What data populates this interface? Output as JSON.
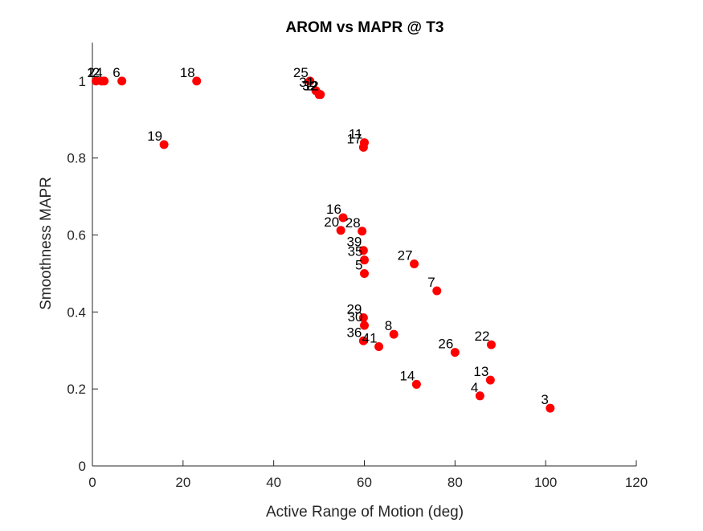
{
  "chart_data": {
    "type": "scatter",
    "title": "AROM vs MAPR @ T3",
    "xlabel": "Active Range of Motion (deg)",
    "ylabel": "Smoothness MAPR",
    "xlim": [
      0,
      120
    ],
    "ylim": [
      0,
      1.1
    ],
    "xticks": [
      "0",
      "20",
      "40",
      "60",
      "80",
      "100",
      "120"
    ],
    "yticks": [
      "0",
      "0.2",
      "0.4",
      "0.6",
      "0.8",
      "1"
    ],
    "grid": false,
    "marker_color": "#ff0000",
    "points": [
      {
        "label": "1",
        "x": 0.8,
        "y": 1.0
      },
      {
        "label": "2",
        "x": 2.0,
        "y": 1.0
      },
      {
        "label": "24",
        "x": 2.6,
        "y": 1.0
      },
      {
        "label": "6",
        "x": 6.5,
        "y": 1.0
      },
      {
        "label": "18",
        "x": 23.0,
        "y": 1.0
      },
      {
        "label": "19",
        "x": 15.8,
        "y": 0.835
      },
      {
        "label": "25",
        "x": 48.0,
        "y": 1.0
      },
      {
        "label": "31",
        "x": 49.3,
        "y": 0.975
      },
      {
        "label": "32",
        "x": 50.0,
        "y": 0.965
      },
      {
        "label": "12",
        "x": 50.3,
        "y": 0.965
      },
      {
        "label": "11",
        "x": 60.0,
        "y": 0.84
      },
      {
        "label": "17",
        "x": 59.8,
        "y": 0.828
      },
      {
        "label": "16",
        "x": 55.3,
        "y": 0.645
      },
      {
        "label": "20",
        "x": 54.8,
        "y": 0.612
      },
      {
        "label": "28",
        "x": 59.5,
        "y": 0.61
      },
      {
        "label": "39",
        "x": 59.8,
        "y": 0.56
      },
      {
        "label": "35",
        "x": 60.0,
        "y": 0.535
      },
      {
        "label": "5",
        "x": 60.0,
        "y": 0.5
      },
      {
        "label": "27",
        "x": 71.0,
        "y": 0.525
      },
      {
        "label": "7",
        "x": 76.0,
        "y": 0.455
      },
      {
        "label": "29",
        "x": 59.8,
        "y": 0.385
      },
      {
        "label": "30",
        "x": 60.0,
        "y": 0.365
      },
      {
        "label": "36",
        "x": 59.8,
        "y": 0.325
      },
      {
        "label": "41",
        "x": 63.2,
        "y": 0.31
      },
      {
        "label": "8",
        "x": 66.5,
        "y": 0.342
      },
      {
        "label": "26",
        "x": 80.0,
        "y": 0.295
      },
      {
        "label": "22",
        "x": 88.0,
        "y": 0.315
      },
      {
        "label": "14",
        "x": 71.5,
        "y": 0.212
      },
      {
        "label": "13",
        "x": 87.8,
        "y": 0.223
      },
      {
        "label": "4",
        "x": 85.5,
        "y": 0.182
      },
      {
        "label": "3",
        "x": 101.0,
        "y": 0.15
      }
    ]
  }
}
